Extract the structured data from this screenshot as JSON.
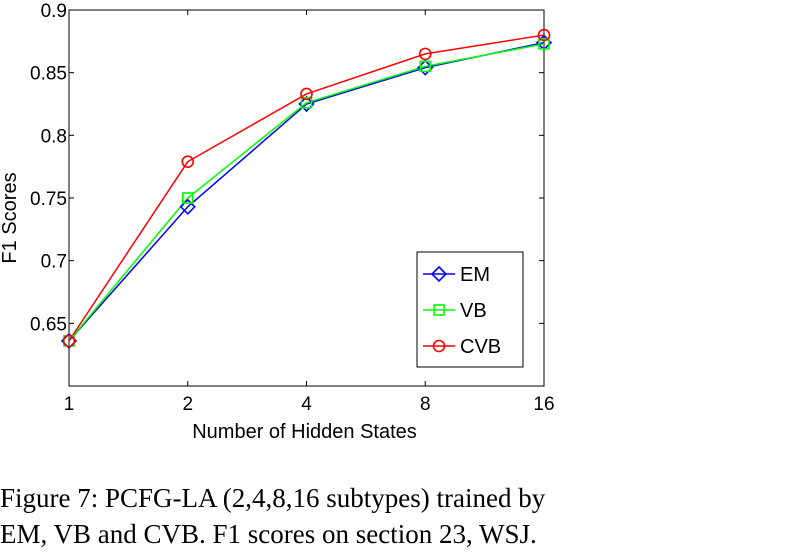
{
  "chart_data": {
    "type": "line",
    "title": "",
    "xlabel": "Number of Hidden States",
    "ylabel": "F1 Scores",
    "categories": [
      "1",
      "2",
      "4",
      "8",
      "16"
    ],
    "ylim": [
      0.6,
      0.9
    ],
    "yticks": [
      "0.65",
      "0.7",
      "0.75",
      "0.8",
      "0.85",
      "0.9"
    ],
    "grid": false,
    "legend_position": "bottom-right",
    "series": [
      {
        "name": "EM",
        "values": [
          0.636,
          0.743,
          0.825,
          0.854,
          0.874
        ],
        "color": "#0000ff",
        "marker": "diamond"
      },
      {
        "name": "VB",
        "values": [
          0.636,
          0.75,
          0.826,
          0.855,
          0.873
        ],
        "color": "#00ff00",
        "marker": "square"
      },
      {
        "name": "CVB",
        "values": [
          0.636,
          0.779,
          0.833,
          0.865,
          0.88
        ],
        "color": "#ff0000",
        "marker": "circle"
      }
    ]
  },
  "caption": {
    "line1": "Figure 7: PCFG-LA (2,4,8,16 subtypes) trained by",
    "line2": "EM, VB and CVB. F1 scores on section 23, WSJ."
  }
}
